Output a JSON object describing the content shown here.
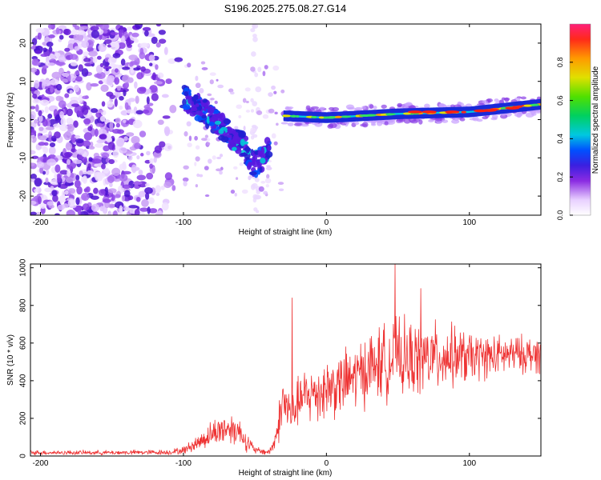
{
  "title": "S196.2025.275.08.27.G14",
  "chart_data": [
    {
      "type": "heatmap",
      "name": "spectrogram",
      "xlabel": "Height of straight line (km)",
      "ylabel": "Frequency (Hz)",
      "xlim": [
        -207,
        150
      ],
      "ylim": [
        -25,
        25
      ],
      "xticks": [
        -200,
        -100,
        0,
        100
      ],
      "yticks": [
        -20,
        -10,
        0,
        10,
        20
      ],
      "colorbar": {
        "label": "Normalized spectral amplitude",
        "range": [
          0,
          1
        ],
        "ticks": [
          0.0,
          0.2,
          0.4,
          0.6,
          0.8
        ]
      },
      "features": [
        {
          "desc": "diffuse noise",
          "x_range": [
            -207,
            -100
          ],
          "freq_range": [
            -25,
            25
          ],
          "amplitude": 0.12
        },
        {
          "desc": "descending trace",
          "x": [
            -100,
            -85,
            -70,
            -60,
            -50,
            -40
          ],
          "freq": [
            6,
            2,
            -3,
            -6,
            -12,
            -8
          ],
          "amplitude": 0.35
        },
        {
          "desc": "main carrier",
          "x": [
            -30,
            0,
            50,
            100,
            150
          ],
          "freq": [
            1,
            0.5,
            1.5,
            2,
            4
          ],
          "amplitude": 0.9
        }
      ]
    },
    {
      "type": "line",
      "name": "snr",
      "xlabel": "Height of straight line (km)",
      "ylabel": "SNR (10 * v/v)",
      "xlim": [
        -207,
        150
      ],
      "ylim": [
        0,
        1020
      ],
      "xticks": [
        -200,
        -100,
        0,
        100
      ],
      "yticks": [
        0,
        200,
        400,
        600,
        800,
        1000
      ],
      "color": "#ee3333",
      "series": [
        {
          "name": "SNR envelope",
          "x": [
            -207,
            -150,
            -110,
            -100,
            -90,
            -80,
            -70,
            -62,
            -55,
            -50,
            -45,
            -40,
            -36,
            -33,
            -30,
            -26,
            -24,
            -22,
            -18,
            -10,
            0,
            10,
            20,
            30,
            40,
            50,
            60,
            70,
            80,
            90,
            100,
            110,
            120,
            130,
            140,
            150
          ],
          "y": [
            18,
            18,
            20,
            30,
            70,
            120,
            150,
            140,
            70,
            30,
            25,
            20,
            80,
            190,
            300,
            230,
            220,
            260,
            300,
            330,
            360,
            380,
            420,
            470,
            500,
            520,
            510,
            520,
            530,
            530,
            520,
            530,
            530,
            540,
            540,
            540
          ],
          "spread": [
            12,
            12,
            14,
            20,
            40,
            70,
            90,
            80,
            50,
            20,
            18,
            15,
            60,
            110,
            180,
            140,
            100,
            120,
            140,
            160,
            170,
            170,
            180,
            190,
            200,
            210,
            200,
            190,
            180,
            160,
            140,
            120,
            110,
            100,
            100,
            100
          ]
        },
        {
          "name": "spikes",
          "x": [
            -24,
            48,
            66
          ],
          "y": [
            840,
            1020,
            890
          ]
        }
      ]
    }
  ]
}
